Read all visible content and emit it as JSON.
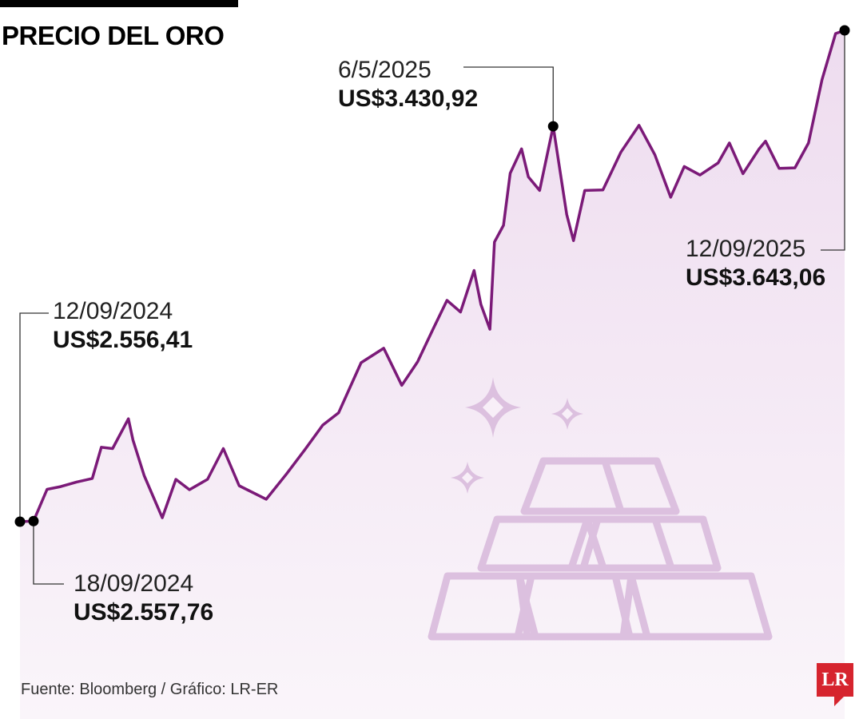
{
  "header": {
    "title": "PRECIO DEL ORO"
  },
  "annotations": [
    {
      "date": "12/09/2024",
      "price": "US$2.556,41"
    },
    {
      "date": "18/09/2024",
      "price": "US$2.557,76"
    },
    {
      "date": "6/5/2025",
      "price": "US$3.430,92"
    },
    {
      "date": "12/09/2025",
      "price": "US$3.643,06"
    }
  ],
  "footer": {
    "source": "Fuente: Bloomberg / Gráfico: LR-ER",
    "logo": "LR"
  },
  "colors": {
    "line": "#7b1a78",
    "area": "#f3e9f4",
    "icon": "#dcc0df",
    "logo": "#d6242e"
  },
  "decoration": {
    "icon": "gold-bars-icon"
  },
  "chart_data": {
    "type": "area",
    "title": "PRECIO DEL ORO",
    "xlabel": "",
    "ylabel": "",
    "unit": "US$",
    "xlim": [
      "2024-09-12",
      "2025-09-12"
    ],
    "ylim": [
      2500,
      3700
    ],
    "grid": false,
    "series": [
      {
        "values": [
          [
            "2024-09-12",
            2556.41
          ],
          [
            "2024-09-18",
            2557.76
          ],
          [
            "2024-09-24",
            2628
          ],
          [
            "2024-09-30",
            2634
          ],
          [
            "2024-10-07",
            2644
          ],
          [
            "2024-10-14",
            2652
          ],
          [
            "2024-10-18",
            2721
          ],
          [
            "2024-10-23",
            2718
          ],
          [
            "2024-10-30",
            2784
          ],
          [
            "2024-11-01",
            2737
          ],
          [
            "2024-11-06",
            2658
          ],
          [
            "2024-11-14",
            2565
          ],
          [
            "2024-11-20",
            2650
          ],
          [
            "2024-11-26",
            2627
          ],
          [
            "2024-12-04",
            2650
          ],
          [
            "2024-12-11",
            2718
          ],
          [
            "2024-12-18",
            2636
          ],
          [
            "2024-12-30",
            2606
          ],
          [
            "2025-01-08",
            2662
          ],
          [
            "2025-01-16",
            2715
          ],
          [
            "2025-01-24",
            2770
          ],
          [
            "2025-01-31",
            2797
          ],
          [
            "2025-02-10",
            2908
          ],
          [
            "2025-02-20",
            2940
          ],
          [
            "2025-02-28",
            2858
          ],
          [
            "2025-03-07",
            2910
          ],
          [
            "2025-03-14",
            2984
          ],
          [
            "2025-03-20",
            3046
          ],
          [
            "2025-03-26",
            3020
          ],
          [
            "2025-04-01",
            3112
          ],
          [
            "2025-04-04",
            3037
          ],
          [
            "2025-04-08",
            2982
          ],
          [
            "2025-04-10",
            3175
          ],
          [
            "2025-04-14",
            3212
          ],
          [
            "2025-04-17",
            3327
          ],
          [
            "2025-04-22",
            3381
          ],
          [
            "2025-04-25",
            3319
          ],
          [
            "2025-04-30",
            3289
          ],
          [
            "2025-05-06",
            3430.92
          ],
          [
            "2025-05-12",
            3236
          ],
          [
            "2025-05-15",
            3178
          ],
          [
            "2025-05-20",
            3289
          ],
          [
            "2025-05-28",
            3290
          ],
          [
            "2025-06-05",
            3374
          ],
          [
            "2025-06-13",
            3433
          ],
          [
            "2025-06-20",
            3368
          ],
          [
            "2025-06-27",
            3274
          ],
          [
            "2025-07-03",
            3342
          ],
          [
            "2025-07-10",
            3323
          ],
          [
            "2025-07-18",
            3350
          ],
          [
            "2025-07-23",
            3394
          ],
          [
            "2025-07-29",
            3326
          ],
          [
            "2025-08-05",
            3380
          ],
          [
            "2025-08-08",
            3398
          ],
          [
            "2025-08-14",
            3338
          ],
          [
            "2025-08-21",
            3339
          ],
          [
            "2025-08-27",
            3394
          ],
          [
            "2025-09-02",
            3534
          ],
          [
            "2025-09-08",
            3636
          ],
          [
            "2025-09-12",
            3643.06
          ]
        ]
      }
    ]
  }
}
